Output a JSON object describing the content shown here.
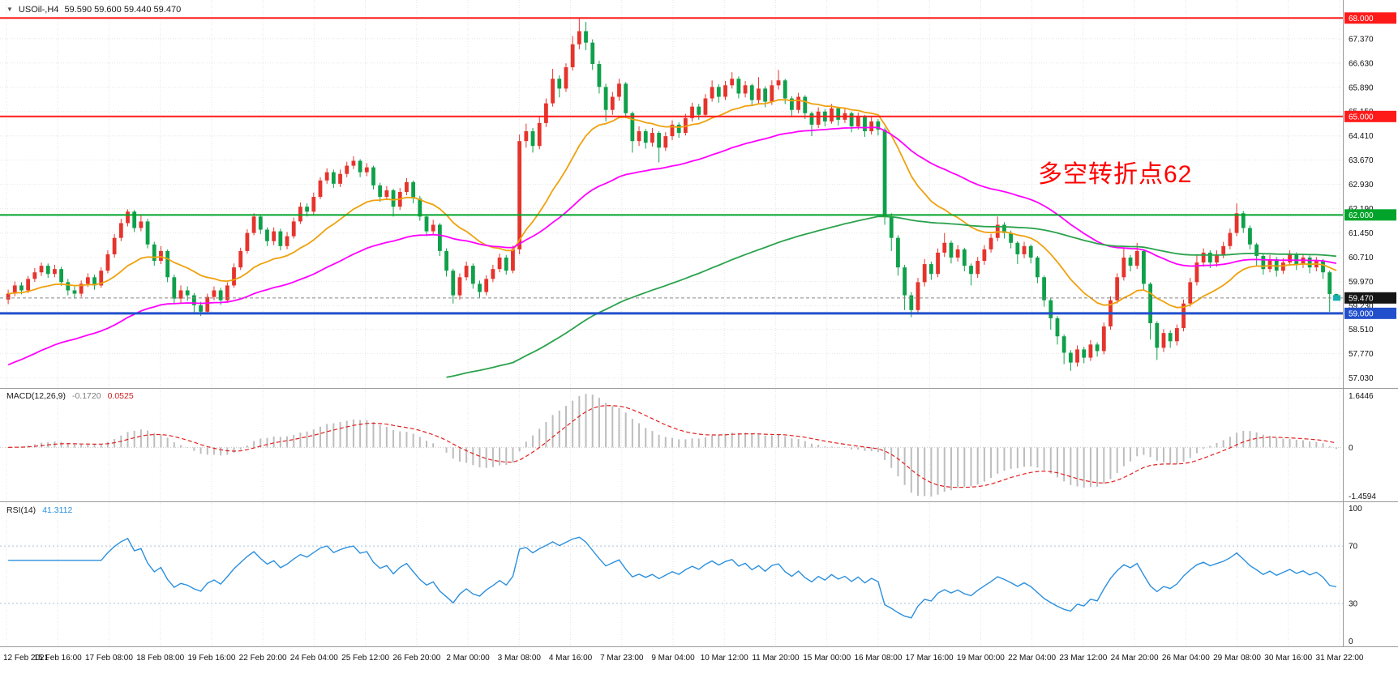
{
  "header": {
    "dropdown_icon": "▼",
    "symbol": "USOil-,H4",
    "ohlc": "59.590 59.600 59.440 59.470"
  },
  "colors": {
    "bull": "#e5342c",
    "bear": "#0fa04a",
    "grid": "#e6e6e6",
    "axis_text": "#111111",
    "separator": "#9a9a9a",
    "macd_hist": "#bdbdbd",
    "macd_signal": "#e02020",
    "rsi_line": "#2b8fde",
    "rsi_level": "#a8c0da",
    "price_line": "#888888",
    "price_badge_bg": "#151515",
    "last_marker": "#17b0b0"
  },
  "chart_data": {
    "type": "candlestick",
    "symbol": "USOil-",
    "timeframe": "H4",
    "ylim": [
      56.75,
      68.55
    ],
    "price_ticks": [
      "67.370",
      "66.630",
      "65.890",
      "65.150",
      "64.410",
      "63.670",
      "62.930",
      "62.190",
      "61.450",
      "60.710",
      "59.970",
      "59.230",
      "58.510",
      "57.770",
      "57.030"
    ],
    "time_labels": [
      "12 Feb 2021",
      "15 Feb 16:00",
      "17 Feb 08:00",
      "18 Feb 08:00",
      "19 Feb 16:00",
      "22 Feb 20:00",
      "24 Feb 04:00",
      "25 Feb 12:00",
      "26 Feb 20:00",
      "2 Mar 00:00",
      "3 Mar 08:00",
      "4 Mar 16:00",
      "7 Mar 23:00",
      "9 Mar 04:00",
      "10 Mar 12:00",
      "11 Mar 20:00",
      "15 Mar 00:00",
      "16 Mar 08:00",
      "17 Mar 16:00",
      "19 Mar 00:00",
      "22 Mar 04:00",
      "23 Mar 12:00",
      "24 Mar 20:00",
      "26 Mar 04:00",
      "29 Mar 08:00",
      "30 Mar 16:00",
      "31 Mar 22:00"
    ],
    "hlines": [
      {
        "value": 68.0,
        "label": "68.000",
        "color": "#ff1a1a",
        "width": 2
      },
      {
        "value": 65.0,
        "label": "65.000",
        "color": "#ff1a1a",
        "width": 2
      },
      {
        "value": 62.0,
        "label": "62.000",
        "color": "#00a42a",
        "width": 2
      },
      {
        "value": 59.0,
        "label": "59.000",
        "color": "#2250cc",
        "width": 3
      }
    ],
    "current_price": {
      "value": 59.47,
      "label": "59.470"
    },
    "annotation": {
      "text": "多空转折点62",
      "color": "#ff0000"
    },
    "moving_averages": [
      {
        "name": "fast",
        "period": 20,
        "color": "#efa10d",
        "seed": null,
        "start_index": 0
      },
      {
        "name": "medium",
        "period": 55,
        "color": "#ff00ff",
        "seed": 57.35,
        "start_index": 0
      },
      {
        "name": "slow",
        "period": 130,
        "color": "#2ba24c",
        "seed": 57.0,
        "start_index": 66
      }
    ],
    "indicators": {
      "macd": {
        "name": "MACD(12,26,9)",
        "value_main": "-0.1720",
        "value_signal": "0.0525",
        "fast": 12,
        "slow": 26,
        "signal": 9,
        "axis_top": "1.6446",
        "axis_zero": "0",
        "axis_bottom": "-1.4594"
      },
      "rsi": {
        "name": "RSI(14)",
        "value": "41.3112",
        "period": 14,
        "levels": [
          70,
          30
        ],
        "axis_ticks": [
          "100",
          "70",
          "30",
          "0"
        ]
      }
    },
    "candles": [
      [
        59.42,
        59.72,
        59.28,
        59.6
      ],
      [
        59.6,
        59.97,
        59.52,
        59.85
      ],
      [
        59.85,
        59.95,
        59.58,
        59.7
      ],
      [
        59.7,
        60.14,
        59.62,
        60.05
      ],
      [
        60.05,
        60.38,
        59.96,
        60.25
      ],
      [
        60.25,
        60.55,
        60.14,
        60.45
      ],
      [
        60.45,
        60.52,
        60.08,
        60.2
      ],
      [
        60.2,
        60.48,
        60.1,
        60.35
      ],
      [
        60.35,
        60.42,
        59.84,
        59.95
      ],
      [
        59.95,
        60.05,
        59.55,
        59.7
      ],
      [
        59.7,
        59.82,
        59.45,
        59.6
      ],
      [
        59.6,
        60.0,
        59.5,
        59.9
      ],
      [
        59.9,
        60.22,
        59.8,
        60.1
      ],
      [
        60.1,
        60.18,
        59.72,
        59.85
      ],
      [
        59.85,
        60.4,
        59.78,
        60.3
      ],
      [
        60.3,
        60.92,
        60.22,
        60.8
      ],
      [
        60.8,
        61.42,
        60.7,
        61.3
      ],
      [
        61.3,
        61.88,
        61.2,
        61.75
      ],
      [
        61.75,
        62.17,
        61.65,
        62.1
      ],
      [
        62.1,
        62.15,
        61.48,
        61.6
      ],
      [
        61.6,
        62.0,
        61.5,
        61.8
      ],
      [
        61.8,
        61.88,
        60.98,
        61.1
      ],
      [
        61.1,
        61.18,
        60.45,
        60.6
      ],
      [
        60.6,
        61.05,
        60.5,
        60.9
      ],
      [
        60.9,
        60.95,
        59.95,
        60.1
      ],
      [
        60.1,
        60.18,
        59.3,
        59.45
      ],
      [
        59.45,
        59.85,
        59.32,
        59.7
      ],
      [
        59.7,
        59.82,
        59.38,
        59.55
      ],
      [
        59.55,
        59.62,
        59.0,
        59.25
      ],
      [
        59.25,
        59.35,
        58.92,
        59.05
      ],
      [
        59.05,
        59.6,
        58.98,
        59.5
      ],
      [
        59.5,
        59.82,
        59.4,
        59.7
      ],
      [
        59.7,
        59.78,
        59.26,
        59.4
      ],
      [
        59.4,
        59.95,
        59.32,
        59.85
      ],
      [
        59.85,
        60.52,
        59.78,
        60.4
      ],
      [
        60.4,
        61.0,
        60.32,
        60.9
      ],
      [
        60.9,
        61.56,
        60.82,
        61.45
      ],
      [
        61.45,
        62.05,
        61.38,
        61.95
      ],
      [
        61.95,
        62.02,
        61.42,
        61.55
      ],
      [
        61.55,
        61.62,
        61.05,
        61.2
      ],
      [
        61.2,
        61.62,
        61.08,
        61.5
      ],
      [
        61.5,
        61.58,
        60.92,
        61.05
      ],
      [
        61.05,
        61.48,
        60.95,
        61.35
      ],
      [
        61.35,
        61.92,
        61.28,
        61.8
      ],
      [
        61.8,
        62.38,
        61.72,
        62.25
      ],
      [
        62.25,
        62.35,
        61.95,
        62.1
      ],
      [
        62.1,
        62.68,
        62.02,
        62.55
      ],
      [
        62.55,
        63.15,
        62.48,
        63.05
      ],
      [
        63.05,
        63.42,
        62.95,
        63.3
      ],
      [
        63.3,
        63.38,
        62.82,
        62.95
      ],
      [
        62.95,
        63.38,
        62.85,
        63.25
      ],
      [
        63.25,
        63.62,
        63.15,
        63.5
      ],
      [
        63.5,
        63.79,
        63.4,
        63.65
      ],
      [
        63.65,
        63.7,
        63.15,
        63.3
      ],
      [
        63.3,
        63.58,
        63.18,
        63.45
      ],
      [
        63.45,
        63.5,
        62.78,
        62.9
      ],
      [
        62.9,
        62.98,
        62.4,
        62.55
      ],
      [
        62.55,
        62.88,
        62.45,
        62.75
      ],
      [
        62.75,
        62.8,
        61.95,
        62.25
      ],
      [
        62.25,
        62.82,
        62.15,
        62.7
      ],
      [
        62.7,
        63.12,
        62.6,
        63.0
      ],
      [
        63.0,
        63.05,
        62.35,
        62.5
      ],
      [
        62.5,
        62.58,
        61.82,
        61.95
      ],
      [
        61.95,
        62.02,
        61.35,
        61.5
      ],
      [
        61.5,
        61.85,
        61.38,
        61.7
      ],
      [
        61.7,
        61.75,
        60.75,
        60.9
      ],
      [
        60.9,
        60.98,
        60.12,
        60.3
      ],
      [
        60.3,
        60.36,
        59.3,
        59.55
      ],
      [
        59.55,
        60.22,
        59.42,
        60.1
      ],
      [
        60.1,
        60.58,
        60.0,
        60.45
      ],
      [
        60.45,
        60.52,
        59.75,
        59.9
      ],
      [
        59.9,
        60.0,
        59.48,
        59.65
      ],
      [
        59.65,
        60.16,
        59.55,
        60.05
      ],
      [
        60.05,
        60.48,
        59.95,
        60.35
      ],
      [
        60.35,
        60.82,
        60.25,
        60.7
      ],
      [
        60.7,
        60.78,
        60.18,
        60.3
      ],
      [
        60.3,
        61.06,
        60.22,
        60.95
      ],
      [
        60.95,
        64.45,
        60.8,
        64.25
      ],
      [
        64.25,
        64.78,
        64.05,
        64.55
      ],
      [
        64.55,
        64.65,
        63.9,
        64.1
      ],
      [
        64.1,
        65.0,
        64.0,
        64.8
      ],
      [
        64.8,
        65.55,
        64.68,
        65.4
      ],
      [
        65.4,
        66.45,
        65.3,
        66.15
      ],
      [
        66.15,
        66.25,
        65.58,
        65.85
      ],
      [
        65.85,
        66.62,
        65.75,
        66.5
      ],
      [
        66.5,
        67.45,
        66.4,
        67.2
      ],
      [
        67.2,
        67.98,
        67.05,
        67.6
      ],
      [
        67.6,
        67.88,
        67.02,
        67.25
      ],
      [
        67.25,
        67.35,
        66.42,
        66.6
      ],
      [
        66.6,
        66.7,
        65.7,
        65.9
      ],
      [
        65.9,
        66.0,
        64.85,
        65.2
      ],
      [
        65.2,
        65.75,
        65.05,
        65.6
      ],
      [
        65.6,
        66.15,
        65.48,
        66.0
      ],
      [
        66.0,
        66.05,
        64.95,
        65.1
      ],
      [
        65.1,
        65.15,
        63.9,
        64.25
      ],
      [
        64.25,
        64.7,
        64.1,
        64.55
      ],
      [
        64.55,
        64.62,
        64.02,
        64.2
      ],
      [
        64.2,
        64.65,
        64.08,
        64.5
      ],
      [
        64.5,
        64.55,
        63.6,
        64.05
      ],
      [
        64.05,
        64.52,
        63.95,
        64.4
      ],
      [
        64.4,
        64.88,
        64.28,
        64.75
      ],
      [
        64.75,
        64.82,
        64.35,
        64.5
      ],
      [
        64.5,
        65.08,
        64.42,
        64.95
      ],
      [
        64.95,
        65.42,
        64.85,
        65.3
      ],
      [
        65.3,
        65.38,
        64.9,
        65.05
      ],
      [
        65.05,
        65.68,
        64.98,
        65.55
      ],
      [
        65.55,
        66.1,
        65.45,
        65.9
      ],
      [
        65.9,
        65.98,
        65.42,
        65.6
      ],
      [
        65.6,
        66.08,
        65.5,
        65.95
      ],
      [
        65.95,
        66.35,
        65.85,
        66.15
      ],
      [
        66.15,
        66.22,
        65.55,
        65.7
      ],
      [
        65.7,
        66.08,
        65.58,
        65.95
      ],
      [
        65.95,
        66.0,
        65.35,
        65.5
      ],
      [
        65.5,
        66.2,
        65.4,
        65.85
      ],
      [
        65.85,
        65.92,
        65.28,
        65.45
      ],
      [
        65.45,
        66.1,
        65.35,
        65.95
      ],
      [
        65.95,
        66.42,
        65.82,
        66.1
      ],
      [
        66.1,
        66.15,
        65.38,
        65.55
      ],
      [
        65.55,
        65.62,
        65.02,
        65.2
      ],
      [
        65.2,
        65.72,
        65.1,
        65.6
      ],
      [
        65.6,
        65.65,
        64.92,
        65.1
      ],
      [
        65.1,
        65.15,
        64.4,
        64.75
      ],
      [
        64.75,
        65.28,
        64.65,
        65.15
      ],
      [
        65.15,
        65.22,
        64.7,
        64.85
      ],
      [
        64.85,
        65.38,
        64.78,
        65.25
      ],
      [
        65.25,
        65.3,
        64.72,
        64.9
      ],
      [
        64.9,
        65.25,
        64.8,
        65.1
      ],
      [
        65.1,
        65.15,
        64.52,
        64.7
      ],
      [
        64.7,
        65.12,
        64.6,
        65.0
      ],
      [
        65.0,
        65.05,
        64.38,
        64.55
      ],
      [
        64.55,
        64.98,
        64.45,
        64.85
      ],
      [
        64.85,
        64.92,
        64.42,
        64.6
      ],
      [
        64.6,
        64.66,
        61.7,
        61.95
      ],
      [
        61.95,
        62.05,
        60.9,
        61.3
      ],
      [
        61.3,
        61.38,
        60.15,
        60.4
      ],
      [
        60.4,
        60.48,
        59.1,
        59.55
      ],
      [
        59.55,
        59.65,
        58.88,
        59.1
      ],
      [
        59.1,
        60.08,
        59.0,
        59.95
      ],
      [
        59.95,
        60.65,
        59.82,
        60.5
      ],
      [
        60.5,
        60.58,
        60.02,
        60.2
      ],
      [
        60.2,
        60.98,
        60.1,
        60.85
      ],
      [
        60.85,
        61.45,
        60.72,
        61.15
      ],
      [
        61.15,
        61.22,
        60.52,
        60.7
      ],
      [
        60.7,
        61.08,
        60.58,
        60.95
      ],
      [
        60.95,
        61.0,
        60.28,
        60.45
      ],
      [
        60.45,
        60.52,
        59.85,
        60.2
      ],
      [
        60.2,
        60.72,
        60.08,
        60.6
      ],
      [
        60.6,
        61.08,
        60.48,
        60.95
      ],
      [
        60.95,
        61.42,
        60.85,
        61.3
      ],
      [
        61.3,
        61.95,
        61.2,
        61.7
      ],
      [
        61.7,
        61.78,
        61.28,
        61.45
      ],
      [
        61.45,
        61.52,
        60.98,
        61.15
      ],
      [
        61.15,
        61.2,
        60.5,
        60.8
      ],
      [
        60.8,
        61.18,
        60.68,
        61.05
      ],
      [
        61.05,
        61.1,
        60.52,
        60.7
      ],
      [
        60.7,
        60.75,
        59.92,
        60.1
      ],
      [
        60.1,
        60.15,
        59.2,
        59.4
      ],
      [
        59.4,
        59.48,
        58.5,
        58.85
      ],
      [
        58.85,
        58.92,
        58.05,
        58.3
      ],
      [
        58.3,
        58.36,
        57.45,
        57.8
      ],
      [
        57.8,
        57.88,
        57.25,
        57.5
      ],
      [
        57.5,
        58.02,
        57.38,
        57.9
      ],
      [
        57.9,
        57.98,
        57.48,
        57.65
      ],
      [
        57.65,
        58.18,
        57.55,
        58.05
      ],
      [
        58.05,
        58.12,
        57.68,
        57.85
      ],
      [
        57.85,
        58.72,
        57.75,
        58.6
      ],
      [
        58.6,
        59.52,
        58.5,
        59.4
      ],
      [
        59.4,
        60.22,
        59.3,
        60.1
      ],
      [
        60.1,
        61.0,
        60.0,
        60.7
      ],
      [
        60.7,
        60.78,
        60.28,
        60.45
      ],
      [
        60.45,
        61.15,
        60.35,
        60.9
      ],
      [
        60.9,
        60.95,
        59.7,
        59.9
      ],
      [
        59.9,
        59.95,
        58.2,
        58.7
      ],
      [
        58.7,
        58.76,
        57.58,
        57.95
      ],
      [
        57.95,
        58.52,
        57.82,
        58.4
      ],
      [
        58.4,
        58.48,
        57.95,
        58.15
      ],
      [
        58.15,
        58.66,
        58.02,
        58.55
      ],
      [
        58.55,
        59.42,
        58.45,
        59.3
      ],
      [
        59.3,
        60.08,
        59.2,
        59.95
      ],
      [
        59.95,
        60.8,
        59.85,
        60.55
      ],
      [
        60.55,
        60.98,
        60.42,
        60.85
      ],
      [
        60.85,
        60.92,
        60.38,
        60.55
      ],
      [
        60.55,
        60.92,
        60.42,
        60.8
      ],
      [
        60.8,
        61.18,
        60.68,
        61.05
      ],
      [
        61.05,
        61.58,
        60.95,
        61.45
      ],
      [
        61.45,
        62.35,
        61.35,
        62.05
      ],
      [
        62.05,
        62.12,
        61.45,
        61.6
      ],
      [
        61.6,
        61.68,
        60.95,
        61.1
      ],
      [
        61.1,
        61.15,
        60.45,
        60.75
      ],
      [
        60.75,
        60.8,
        60.18,
        60.35
      ],
      [
        60.35,
        60.78,
        60.25,
        60.65
      ],
      [
        60.65,
        60.72,
        60.12,
        60.3
      ],
      [
        60.3,
        60.68,
        60.2,
        60.55
      ],
      [
        60.55,
        60.92,
        60.45,
        60.8
      ],
      [
        60.8,
        60.86,
        60.32,
        60.5
      ],
      [
        60.5,
        60.82,
        60.38,
        60.7
      ],
      [
        60.7,
        60.76,
        60.22,
        60.4
      ],
      [
        60.4,
        60.72,
        60.28,
        60.6
      ],
      [
        60.6,
        60.66,
        60.05,
        60.25
      ],
      [
        60.25,
        60.3,
        59.05,
        59.59
      ],
      [
        59.59,
        59.6,
        59.44,
        59.47
      ]
    ]
  }
}
